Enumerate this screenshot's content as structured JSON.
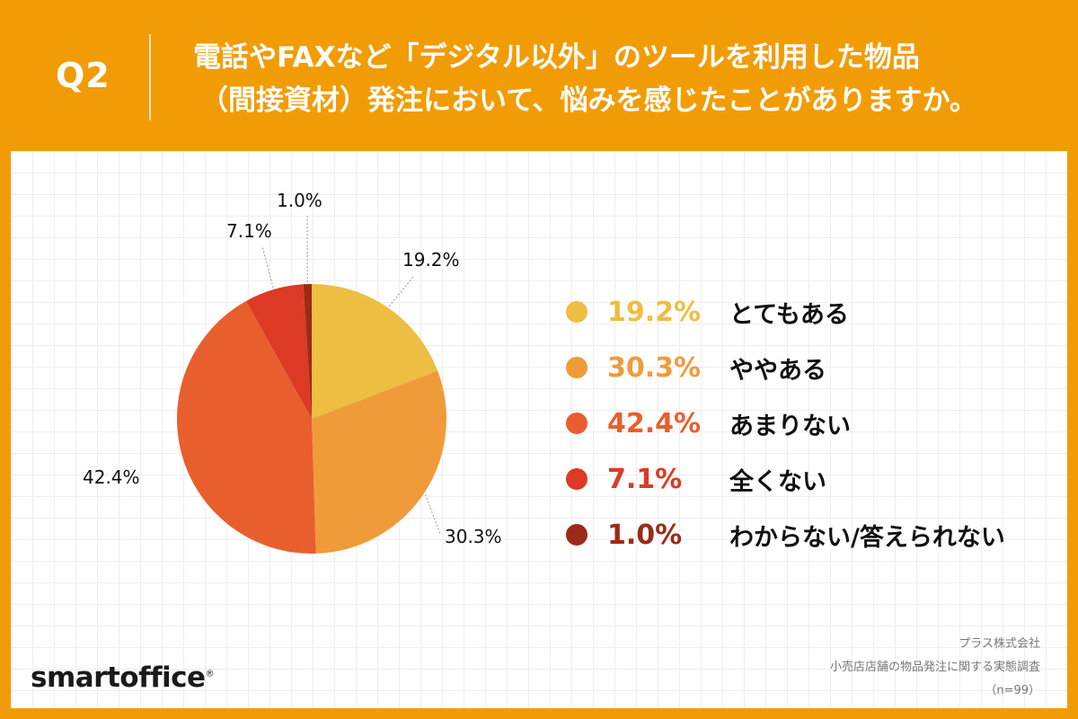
{
  "header": {
    "q_label": "Q2",
    "title_line1": "電話やFAXなど「デジタル以外」のツールを利用した物品",
    "title_line2": "（間接資材）発注において、悩みを感じたことがありますか。"
  },
  "colors": {
    "background": "#F29C05",
    "slices": [
      "#EEBE43",
      "#F09B3A",
      "#E85F2D",
      "#DC3A25",
      "#9C2A18"
    ]
  },
  "chart_data": {
    "type": "pie",
    "title": "電話やFAXなど「デジタル以外」のツールを利用した物品（間接資材）発注において、悩みを感じたことがありますか。",
    "legend_position": "right",
    "slices": [
      {
        "label": "とてもある",
        "value": 19.2,
        "display": "19.2%",
        "color": "#EEBE43"
      },
      {
        "label": "ややある",
        "value": 30.3,
        "display": "30.3%",
        "color": "#F09B3A"
      },
      {
        "label": "あまりない",
        "value": 42.4,
        "display": "42.4%",
        "color": "#E85F2D"
      },
      {
        "label": "全くない",
        "value": 7.1,
        "display": "7.1%",
        "color": "#DC3A25"
      },
      {
        "label": "わからない/答えられない",
        "value": 1.0,
        "display": "1.0%",
        "color": "#9C2A18"
      }
    ]
  },
  "logo": {
    "text": "smartoffice",
    "mark": "®"
  },
  "source": {
    "company": "プラス株式会社",
    "survey": "小売店店舗の物品発注に関する実態調査",
    "sample": "（n=99）"
  }
}
